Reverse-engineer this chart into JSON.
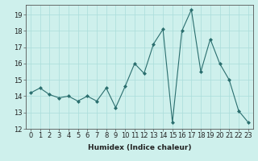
{
  "x": [
    0,
    1,
    2,
    3,
    4,
    5,
    6,
    7,
    8,
    9,
    10,
    11,
    12,
    13,
    14,
    15,
    16,
    17,
    18,
    19,
    20,
    21,
    22,
    23
  ],
  "y": [
    14.2,
    14.5,
    14.1,
    13.9,
    14.0,
    13.7,
    14.0,
    13.7,
    14.5,
    13.3,
    14.6,
    16.0,
    15.4,
    17.2,
    18.1,
    12.4,
    18.0,
    19.3,
    15.5,
    17.5,
    16.0,
    15.0,
    13.1,
    12.4
  ],
  "line_color": "#2a6e6e",
  "marker": "D",
  "marker_size": 2.0,
  "bg_color": "#cef0ec",
  "grid_color": "#aaddda",
  "xlabel": "Humidex (Indice chaleur)",
  "ylim": [
    12,
    19.6
  ],
  "xlim": [
    -0.5,
    23.5
  ],
  "yticks": [
    12,
    13,
    14,
    15,
    16,
    17,
    18,
    19
  ],
  "xticks": [
    0,
    1,
    2,
    3,
    4,
    5,
    6,
    7,
    8,
    9,
    10,
    11,
    12,
    13,
    14,
    15,
    16,
    17,
    18,
    19,
    20,
    21,
    22,
    23
  ],
  "xlabel_fontsize": 6.5,
  "tick_fontsize": 6.0,
  "spine_color": "#555555"
}
